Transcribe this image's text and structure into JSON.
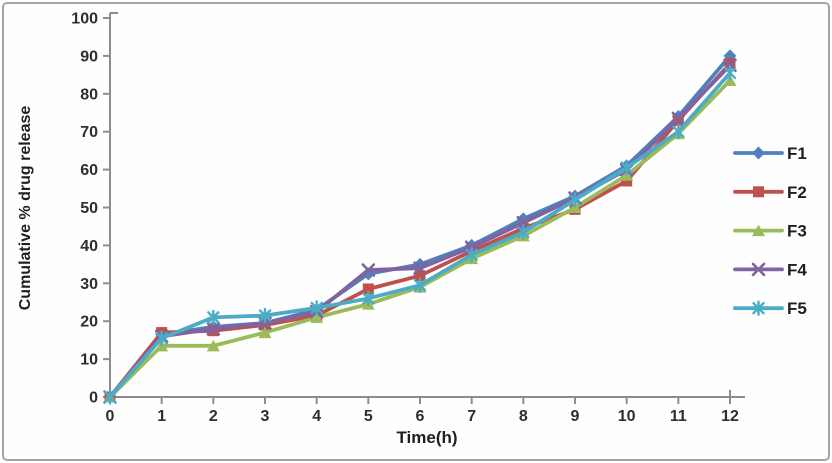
{
  "chart_data": {
    "type": "line",
    "title": "",
    "xlabel": "Time(h)",
    "ylabel": "Cumulative % drug release",
    "x": [
      0,
      1,
      2,
      3,
      4,
      5,
      6,
      7,
      8,
      9,
      10,
      11,
      12
    ],
    "xticks": [
      0,
      1,
      2,
      3,
      4,
      5,
      6,
      7,
      8,
      9,
      10,
      11,
      12
    ],
    "yticks": [
      0,
      10,
      20,
      30,
      40,
      50,
      60,
      70,
      80,
      90,
      100
    ],
    "xlim": [
      0,
      12
    ],
    "ylim": [
      0,
      100
    ],
    "grid": false,
    "legend_position": "right",
    "series": [
      {
        "name": "F1",
        "color": "#4F81BD",
        "marker": "diamond",
        "values": [
          0,
          16.5,
          18.5,
          19.5,
          23,
          32.5,
          35,
          40,
          47,
          53,
          61,
          74,
          90
        ]
      },
      {
        "name": "F2",
        "color": "#C0504D",
        "marker": "square",
        "values": [
          0,
          17,
          17.5,
          19,
          21.5,
          28.5,
          32,
          38.5,
          44.5,
          49.5,
          57,
          73,
          88
        ]
      },
      {
        "name": "F3",
        "color": "#9BBB59",
        "marker": "triangle",
        "values": [
          0,
          13.5,
          13.5,
          17,
          21,
          24.5,
          29,
          36.5,
          42.5,
          50,
          58.5,
          69.5,
          83.5
        ]
      },
      {
        "name": "F4",
        "color": "#8064A2",
        "marker": "x",
        "values": [
          0,
          16,
          18,
          19.5,
          22.5,
          33.5,
          34,
          39.5,
          46,
          52.5,
          60,
          73.5,
          87.5
        ]
      },
      {
        "name": "F5",
        "color": "#4BACC6",
        "marker": "asterisk",
        "values": [
          0,
          15.5,
          21,
          21.5,
          23.5,
          26,
          29.5,
          37.5,
          43.5,
          52,
          60.5,
          70,
          85.5
        ]
      }
    ]
  },
  "style_colors": {
    "axis": "#8C8C8C",
    "tick_label": "#2E2E2E",
    "axis_title": "#1F1F1F",
    "legend_label": "#1F1F1F",
    "frame_border": "#A3A3A3",
    "background": "#FFFFFF"
  }
}
